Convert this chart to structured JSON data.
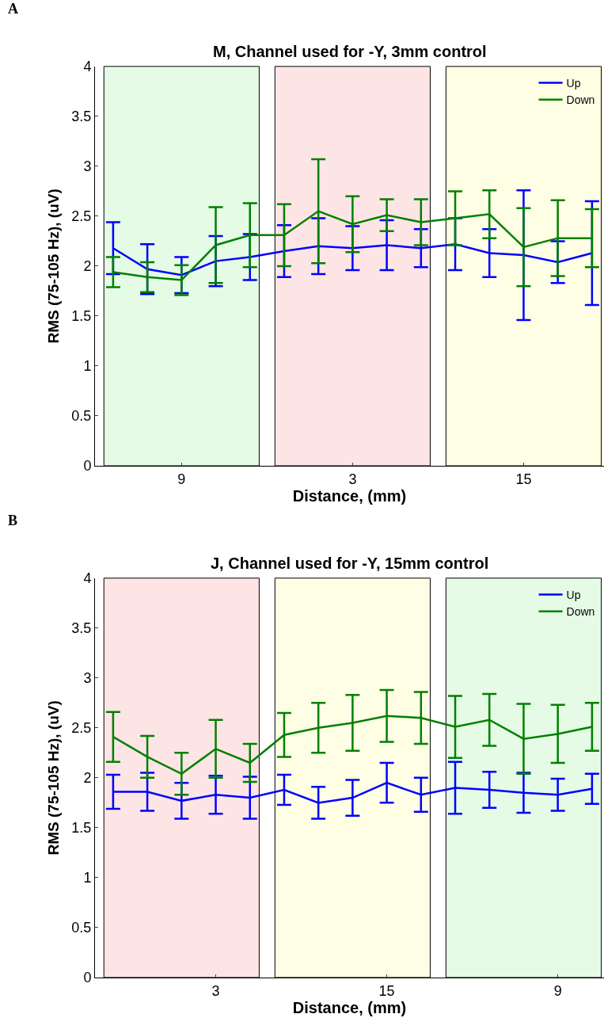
{
  "chart_data": [
    {
      "type": "line",
      "title": "M, Channel used for -Y, 3mm control",
      "xlabel": "Distance, (mm)",
      "ylabel": "RMS (75-105 Hz), (uV)",
      "annotations": [
        "A"
      ],
      "categories": [
        null,
        null,
        "9",
        null,
        null,
        null,
        null,
        "3",
        null,
        null,
        null,
        null,
        "15",
        null,
        null
      ],
      "ylim": [
        0,
        4
      ],
      "yticks": [
        0,
        0.5,
        1,
        1.5,
        2,
        2.5,
        3,
        3.5,
        4
      ],
      "legend": "top right",
      "series": [
        {
          "name": "Up",
          "color": "#0000ff",
          "values": [
            2.18,
            1.97,
            1.91,
            2.05,
            2.09,
            2.15,
            2.2,
            2.18,
            2.21,
            2.18,
            2.22,
            2.13,
            2.11,
            2.04,
            2.13
          ],
          "errors": [
            0.26,
            0.25,
            0.18,
            0.25,
            0.23,
            0.26,
            0.28,
            0.22,
            0.25,
            0.19,
            0.26,
            0.24,
            0.65,
            0.21,
            0.52
          ]
        },
        {
          "name": "Down",
          "color": "#008000",
          "values": [
            1.94,
            1.89,
            1.86,
            2.21,
            2.31,
            2.31,
            2.55,
            2.42,
            2.51,
            2.44,
            2.48,
            2.52,
            2.19,
            2.28,
            2.28
          ],
          "errors": [
            0.15,
            0.15,
            0.15,
            0.38,
            0.32,
            0.31,
            0.52,
            0.28,
            0.16,
            0.23,
            0.27,
            0.24,
            0.39,
            0.38,
            0.29
          ]
        }
      ]
    },
    {
      "type": "line",
      "title": "J, Channel used for -Y, 15mm control",
      "xlabel": "Distance, (mm)",
      "ylabel": "RMS (75-105 Hz), (uV)",
      "annotations": [
        "B"
      ],
      "categories": [
        null,
        null,
        null,
        "3",
        null,
        null,
        null,
        null,
        "15",
        null,
        null,
        null,
        null,
        "9",
        null
      ],
      "ylim": [
        0,
        4
      ],
      "yticks": [
        0,
        0.5,
        1,
        1.5,
        2,
        2.5,
        3,
        3.5,
        4
      ],
      "legend": "top right",
      "series": [
        {
          "name": "Up",
          "color": "#0000ff",
          "values": [
            1.86,
            1.86,
            1.77,
            1.83,
            1.8,
            1.88,
            1.75,
            1.8,
            1.95,
            1.83,
            1.9,
            1.88,
            1.85,
            1.83,
            1.89
          ],
          "errors": [
            0.17,
            0.19,
            0.18,
            0.19,
            0.21,
            0.15,
            0.16,
            0.18,
            0.2,
            0.17,
            0.26,
            0.18,
            0.2,
            0.16,
            0.15
          ]
        },
        {
          "name": "Down",
          "color": "#008000",
          "values": [
            2.41,
            2.21,
            2.04,
            2.29,
            2.15,
            2.43,
            2.5,
            2.55,
            2.62,
            2.6,
            2.51,
            2.58,
            2.39,
            2.44,
            2.51
          ],
          "errors": [
            0.25,
            0.21,
            0.21,
            0.29,
            0.19,
            0.22,
            0.25,
            0.28,
            0.26,
            0.26,
            0.31,
            0.26,
            0.35,
            0.29,
            0.24
          ]
        }
      ]
    }
  ]
}
